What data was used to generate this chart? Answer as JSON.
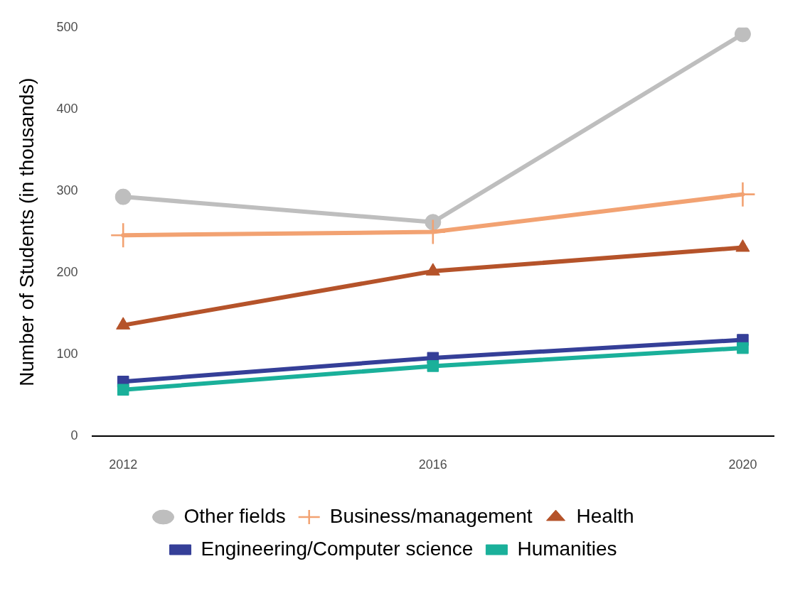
{
  "chart_data": {
    "type": "line",
    "ylabel": "Number of Students (in thousands)",
    "x": [
      2012,
      2016,
      2020
    ],
    "xlim": [
      2011.6,
      2020.4
    ],
    "xticks": [
      2012,
      2016,
      2020
    ],
    "ylim": [
      0,
      500
    ],
    "yticks": [
      0,
      100,
      200,
      300,
      400,
      500
    ],
    "grid": false,
    "legend": "bottom",
    "series": [
      {
        "name": "Other fields",
        "color": "#bebebe",
        "marker": "circle",
        "values": [
          293,
          262,
          492
        ]
      },
      {
        "name": "Business/management",
        "color": "#f2a272",
        "marker": "cross",
        "values": [
          246,
          250,
          296
        ]
      },
      {
        "name": "Health",
        "color": "#b5532a",
        "marker": "triangle",
        "values": [
          136,
          202,
          231
        ]
      },
      {
        "name": "Engineering/Computer science",
        "color": "#353f98",
        "marker": "square",
        "values": [
          67,
          96,
          118
        ]
      },
      {
        "name": "Humanities",
        "color": "#1ab09a",
        "marker": "square",
        "values": [
          57,
          86,
          108
        ]
      }
    ]
  }
}
